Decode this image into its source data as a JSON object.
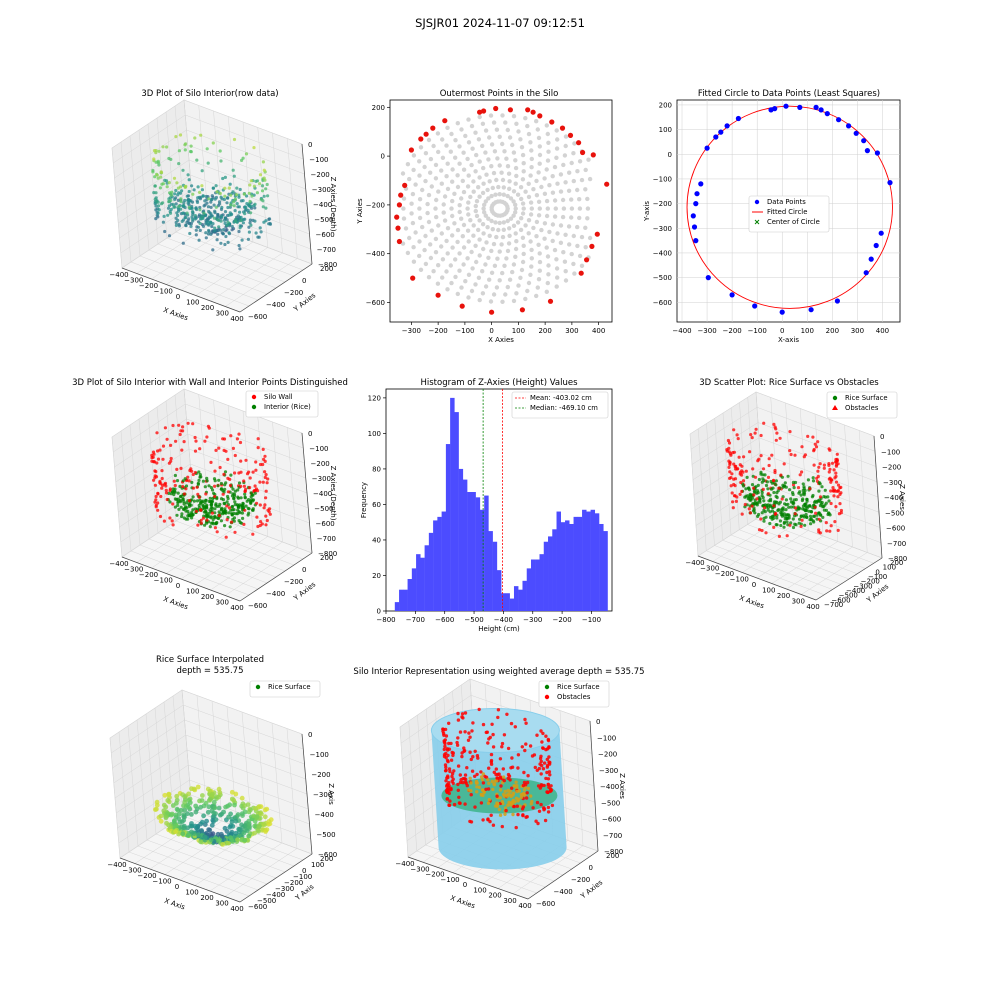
{
  "figure": {
    "title": "SJSJR01 2024-11-07 09:12:51"
  },
  "chart_data": [
    {
      "id": "p1",
      "type": "scatter3d",
      "title": "3D Plot of Silo Interior(row data)",
      "xlabel": "X Axies",
      "ylabel": "Y Axies",
      "zlabel": "Z Axies (Depth)",
      "xticks": [
        "−400",
        "−300",
        "−200",
        "−100",
        "0",
        "100",
        "200",
        "300",
        "400"
      ],
      "yticks": [
        "−600",
        "−400",
        "−200",
        "0",
        "200"
      ],
      "zticks": [
        "0",
        "−100",
        "−200",
        "−300",
        "−400",
        "−500",
        "−600",
        "−700",
        "−800"
      ],
      "colormap": "viridis"
    },
    {
      "id": "p2",
      "type": "scatter",
      "title": "Outermost Points in the Silo",
      "xlabel": "X Axies",
      "ylabel": "Y Axies",
      "xlim": [
        -380,
        450
      ],
      "ylim": [
        -680,
        230
      ],
      "xticks": [
        -300,
        -200,
        -100,
        0,
        100,
        200,
        300,
        400
      ],
      "yticks": [
        200,
        0,
        -200,
        -400,
        -600
      ],
      "colors": {
        "outer": "#e8120c",
        "inner": "#d3d3d3"
      },
      "outer_points": [
        [
          -300,
          25
        ],
        [
          -265,
          70
        ],
        [
          -245,
          90
        ],
        [
          -220,
          115
        ],
        [
          -175,
          145
        ],
        [
          -45,
          180
        ],
        [
          -30,
          185
        ],
        [
          15,
          195
        ],
        [
          70,
          190
        ],
        [
          135,
          190
        ],
        [
          155,
          180
        ],
        [
          180,
          165
        ],
        [
          225,
          140
        ],
        [
          265,
          115
        ],
        [
          295,
          85
        ],
        [
          325,
          55
        ],
        [
          340,
          15
        ],
        [
          380,
          5
        ],
        [
          430,
          -115
        ],
        [
          395,
          -320
        ],
        [
          375,
          -370
        ],
        [
          355,
          -425
        ],
        [
          335,
          -480
        ],
        [
          220,
          -595
        ],
        [
          115,
          -630
        ],
        [
          0,
          -640
        ],
        [
          -110,
          -615
        ],
        [
          -200,
          -570
        ],
        [
          -295,
          -500
        ],
        [
          -345,
          -350
        ],
        [
          -350,
          -295
        ],
        [
          -355,
          -250
        ],
        [
          -345,
          -200
        ],
        [
          -340,
          -160
        ],
        [
          -325,
          -120
        ]
      ]
    },
    {
      "id": "p3",
      "type": "scatter",
      "title": "Fitted Circle to Data Points (Least Squares)",
      "xlabel": "X-axis",
      "ylabel": "Y-axis",
      "xlim": [
        -420,
        470
      ],
      "ylim": [
        -680,
        220
      ],
      "xticks": [
        -400,
        -300,
        -200,
        -100,
        0,
        100,
        200,
        300,
        400
      ],
      "yticks": [
        200,
        100,
        0,
        -100,
        -200,
        -300,
        -400,
        -500,
        -600
      ],
      "circle": {
        "cx": 30,
        "cy": -215,
        "r": 410
      },
      "legend": [
        "Data Points",
        "Fitted Circle",
        "Center of Circle"
      ],
      "colors": {
        "points": "#0000ff",
        "circle": "#ff0000",
        "center": "#008000"
      }
    },
    {
      "id": "p4",
      "type": "scatter3d",
      "title": "3D Plot of Silo Interior with Wall and Interior Points Distinguished",
      "xlabel": "X Axies",
      "ylabel": "Y Axies",
      "zlabel": "Z Axies (Depth)",
      "xticks": [
        "−400",
        "−300",
        "−200",
        "−100",
        "0",
        "100",
        "200",
        "300",
        "400"
      ],
      "yticks": [
        "−600",
        "−400",
        "−200",
        "0",
        "200"
      ],
      "zticks": [
        "0",
        "−100",
        "−200",
        "−300",
        "−400",
        "−500",
        "−600",
        "−700",
        "−800"
      ],
      "legend": [
        "Silo Wall",
        "Interior (Rice)"
      ],
      "colors": {
        "wall": "#ff0000",
        "rice": "#008000"
      }
    },
    {
      "id": "p5",
      "type": "bar",
      "title": "Histogram of Z-Axies (Height) Values",
      "xlabel": "Height (cm)",
      "ylabel": "Frequency",
      "xlim": [
        -800,
        -30
      ],
      "ylim": [
        0,
        125
      ],
      "xticks": [
        -800,
        -700,
        -600,
        -500,
        -400,
        -300,
        -200,
        -100
      ],
      "yticks": [
        0,
        20,
        40,
        60,
        80,
        100,
        120
      ],
      "bins_start": -770,
      "bin_width": 14.5,
      "values": [
        5,
        12,
        12,
        18,
        24,
        32,
        30,
        37,
        44,
        51,
        53,
        56,
        94,
        120,
        112,
        80,
        74,
        67,
        67,
        64,
        57,
        65,
        45,
        39,
        23,
        10,
        10,
        7,
        14,
        12,
        17,
        24,
        29,
        29,
        32,
        39,
        42,
        46,
        56,
        50,
        51,
        49,
        53,
        53,
        57,
        56,
        57,
        55,
        49,
        45
      ],
      "mean": -403.02,
      "median": -469.1,
      "legend": [
        "Mean: -403.02 cm",
        "Median: -469.10 cm"
      ],
      "colors": {
        "bars": "#4c4cff",
        "mean": "#ff0000",
        "median": "#008000"
      }
    },
    {
      "id": "p6",
      "type": "scatter3d",
      "title": "3D Scatter Plot: Rice Surface vs Obstacles",
      "xlabel": "X Axies",
      "ylabel": "Y Axies",
      "zlabel": "Z Axies",
      "xticks": [
        "−400",
        "−300",
        "−200",
        "−100",
        "0",
        "100",
        "200",
        "300",
        "400"
      ],
      "yticks": [
        "−700",
        "−600",
        "−500",
        "−400",
        "−300",
        "−200",
        "−100",
        "0",
        "100",
        "200"
      ],
      "zticks": [
        "0",
        "−100",
        "−200",
        "−300",
        "−400",
        "−500",
        "−600",
        "−700",
        "−800"
      ],
      "legend": [
        "Rice Surface",
        "Obstacles"
      ],
      "colors": {
        "rice": "#008000",
        "obstacles": "#ff0000"
      }
    },
    {
      "id": "p7",
      "type": "surface3d",
      "title": "Rice Surface Interpolated",
      "subtitle": "depth = 535.75",
      "xlabel": "X Axis",
      "ylabel": "Y Axis",
      "zlabel": "Z Axis",
      "xticks": [
        "−400",
        "−300",
        "−200",
        "−100",
        "0",
        "100",
        "200",
        "300",
        "400"
      ],
      "yticks": [
        "−600",
        "−500",
        "−400",
        "−300",
        "−200",
        "−100",
        "0",
        "100",
        "200"
      ],
      "zticks": [
        "0",
        "−100",
        "−200",
        "−300",
        "−400",
        "−500",
        "−600"
      ],
      "legend": [
        "Rice Surface"
      ],
      "colors": {
        "rice": "#008000"
      }
    },
    {
      "id": "p8",
      "type": "scatter3d",
      "title": "Silo Interior Representation using weighted average depth = 535.75",
      "xlabel": "X Axies",
      "ylabel": "Y Axies",
      "zlabel": "Z Axies",
      "xticks": [
        "−400",
        "−300",
        "−200",
        "−100",
        "0",
        "100",
        "200",
        "300",
        "400"
      ],
      "yticks": [
        "−600",
        "−400",
        "−200",
        "0",
        "200"
      ],
      "zticks": [
        "0",
        "−100",
        "−200",
        "−300",
        "−400",
        "−500",
        "−600",
        "−700",
        "−800"
      ],
      "legend": [
        "Rice Surface",
        "Obstacles"
      ],
      "colors": {
        "rice": "#008000",
        "obstacles": "#ff0000",
        "cylinder": "#87ceeb"
      }
    }
  ]
}
